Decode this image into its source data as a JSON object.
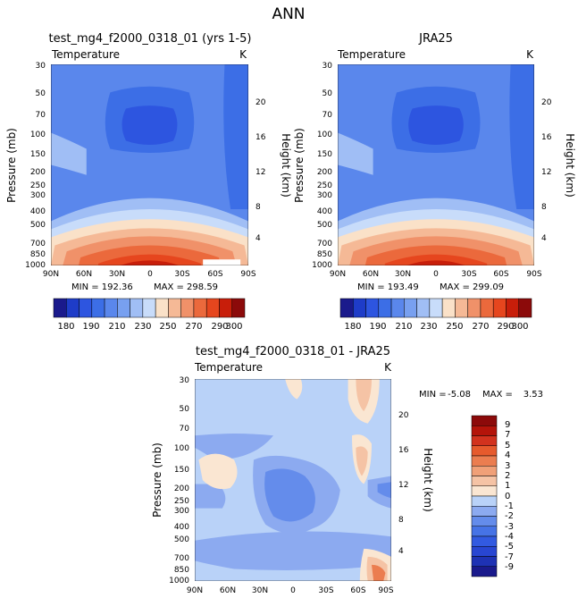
{
  "figure_title": "ANN",
  "chart_data": [
    {
      "type": "heatmap",
      "panel": "top-left",
      "title": "test_mg4_f2000_0318_01 (yrs 1-5)",
      "subtitle_left": "Temperature",
      "subtitle_right": "K",
      "ylabel": "Pressure (mb)",
      "y2label": "Height (km)",
      "x_ticks": [
        "90N",
        "60N",
        "30N",
        "0",
        "30S",
        "60S",
        "90S"
      ],
      "y_ticks": [
        "30",
        "50",
        "70",
        "100",
        "150",
        "200",
        "250",
        "300",
        "400",
        "500",
        "700",
        "850",
        "1000"
      ],
      "y2_ticks": [
        "20",
        "16",
        "12",
        "8",
        "4"
      ],
      "ylim": [
        1000,
        30
      ],
      "log_pressure_axis": true,
      "min_label": "MIN = 192.36",
      "max_label": "MAX = 298.59",
      "min": 192.36,
      "max": 298.59,
      "colorbar": {
        "orientation": "horizontal",
        "levels": [
          180,
          190,
          200,
          210,
          220,
          230,
          240,
          250,
          260,
          270,
          280,
          290,
          300
        ],
        "labels": [
          "180",
          "190",
          "210",
          "230",
          "250",
          "270",
          "290",
          "300"
        ],
        "colors": [
          "#1a1a8c",
          "#1e3cc8",
          "#2d55e0",
          "#3c6ee6",
          "#5a87ec",
          "#78a0f0",
          "#a0bef5",
          "#c8dcfa",
          "#fae1c8",
          "#f5b996",
          "#f09169",
          "#eb693c",
          "#e6461e",
          "#c81e0a",
          "#8c0a0a"
        ]
      }
    },
    {
      "type": "heatmap",
      "panel": "top-right",
      "title": "JRA25",
      "subtitle_left": "Temperature",
      "subtitle_right": "K",
      "ylabel": "Pressure (mb)",
      "y2label": "Height (km)",
      "x_ticks": [
        "90N",
        "60N",
        "30N",
        "0",
        "30S",
        "60S",
        "90S"
      ],
      "y_ticks": [
        "30",
        "50",
        "70",
        "100",
        "150",
        "200",
        "250",
        "300",
        "400",
        "500",
        "700",
        "850",
        "1000"
      ],
      "y2_ticks": [
        "20",
        "16",
        "12",
        "8",
        "4"
      ],
      "ylim": [
        1000,
        30
      ],
      "log_pressure_axis": true,
      "min_label": "MIN = 193.49",
      "max_label": "MAX = 299.09",
      "min": 193.49,
      "max": 299.09,
      "colorbar": {
        "orientation": "horizontal",
        "levels": [
          180,
          190,
          200,
          210,
          220,
          230,
          240,
          250,
          260,
          270,
          280,
          290,
          300
        ],
        "labels": [
          "180",
          "190",
          "210",
          "230",
          "250",
          "270",
          "290",
          "300"
        ],
        "colors": [
          "#1a1a8c",
          "#1e3cc8",
          "#2d55e0",
          "#3c6ee6",
          "#5a87ec",
          "#78a0f0",
          "#a0bef5",
          "#c8dcfa",
          "#fae1c8",
          "#f5b996",
          "#f09169",
          "#eb693c",
          "#e6461e",
          "#c81e0a",
          "#8c0a0a"
        ]
      }
    },
    {
      "type": "heatmap",
      "panel": "bottom",
      "title": "test_mg4_f2000_0318_01 - JRA25",
      "subtitle_left": "Temperature",
      "subtitle_right": "K",
      "ylabel": "Pressure (mb)",
      "y2label": "Height (km)",
      "x_ticks": [
        "90N",
        "60N",
        "30N",
        "0",
        "30S",
        "60S",
        "90S"
      ],
      "y_ticks": [
        "30",
        "50",
        "70",
        "100",
        "150",
        "200",
        "250",
        "300",
        "400",
        "500",
        "700",
        "850",
        "1000"
      ],
      "y2_ticks": [
        "20",
        "16",
        "12",
        "8",
        "4"
      ],
      "ylim": [
        1000,
        30
      ],
      "log_pressure_axis": true,
      "min_label": "MIN =",
      "min_value_label": "-5.08",
      "max_label": "MAX =",
      "max_value_label": "3.53",
      "min": -5.08,
      "max": 3.53,
      "colorbar": {
        "orientation": "vertical",
        "levels": [
          -9,
          -7,
          -5,
          -4,
          -3,
          -2,
          -1,
          0,
          1,
          2,
          3,
          4,
          5,
          7,
          9
        ],
        "labels": [
          "9",
          "7",
          "5",
          "4",
          "3",
          "2",
          "1",
          "0",
          "-1",
          "-2",
          "-3",
          "-4",
          "-5",
          "-7",
          "-9"
        ],
        "colors": [
          "#1a1a8c",
          "#1e32b4",
          "#2846d2",
          "#325ae1",
          "#4673e6",
          "#648ceb",
          "#8caaf0",
          "#b9d2f8",
          "#fae6d2",
          "#f5c3a5",
          "#f0a078",
          "#eb7d50",
          "#e65a2d",
          "#d2321e",
          "#b4140a",
          "#8c0a0a"
        ]
      }
    }
  ]
}
